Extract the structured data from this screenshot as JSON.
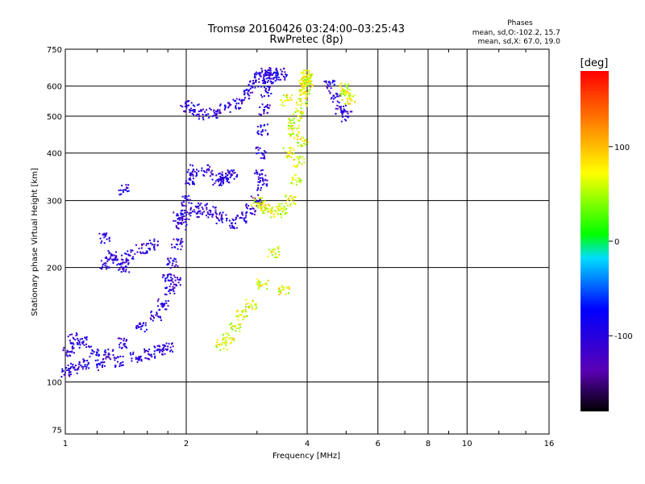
{
  "chart_data": {
    "type": "scatter",
    "title": "Tromsø 20160426 03:24:00–03:25:43",
    "subtitle": "RwPretec (8p)",
    "stats_title": "Phases",
    "stats_line1": "mean, sd,O:-102.2, 15.7",
    "stats_line2": "mean, sd,X:  67.0, 19.0",
    "xlabel": "Frequency [MHz]",
    "ylabel": "Stationary phase Virtual Height [km]",
    "xscale": "log",
    "yscale": "log",
    "xlim": [
      1,
      16
    ],
    "ylim": [
      73,
      750
    ],
    "xticks": [
      1,
      2,
      4,
      6,
      8,
      10,
      16
    ],
    "xtick_labels": [
      "1",
      "2",
      "4",
      "6",
      "8",
      "10",
      "16"
    ],
    "yticks": [
      75,
      100,
      200,
      300,
      400,
      500,
      600,
      750
    ],
    "ytick_labels": [
      "75",
      "100",
      "200",
      "300",
      "400",
      "500",
      "600",
      "750"
    ],
    "grid": true,
    "colorbar": {
      "label": "[deg]",
      "range": [
        -180,
        180
      ],
      "ticks": [
        100,
        0,
        -100
      ],
      "tick_labels": [
        "100",
        "0",
        "-100"
      ]
    },
    "series": [
      {
        "mode": "O",
        "phase_mean": -102.2,
        "traces": [
          {
            "f": [
              1.0,
              1.05,
              1.12,
              1.22,
              1.35,
              1.5,
              1.62,
              1.72,
              1.8
            ],
            "h": [
              106,
              109,
              111,
              111,
              113,
              116,
              118,
              121,
              124
            ]
          },
          {
            "f": [
              1.02,
              1.05,
              1.1,
              1.18,
              1.28,
              1.4,
              1.55,
              1.68,
              1.75,
              1.82,
              1.88
            ],
            "h": [
              120,
              130,
              127,
              120,
              118,
              126,
              140,
              150,
              160,
              175,
              185
            ]
          },
          {
            "f": [
              1.8,
              1.85,
              1.9,
              1.95,
              2.0,
              2.05,
              2.08
            ],
            "h": [
              190,
              205,
              230,
              260,
              300,
              340,
              360
            ]
          },
          {
            "f": [
              1.92,
              2.0,
              2.1,
              2.2,
              2.3,
              2.45,
              2.6,
              2.75,
              2.9,
              3.0,
              3.1
            ],
            "h": [
              270,
              275,
              280,
              285,
              280,
              270,
              262,
              270,
              285,
              300,
              330
            ]
          },
          {
            "f": [
              3.05,
              3.08,
              3.1,
              3.13,
              3.16,
              3.2,
              3.25
            ],
            "h": [
              350,
              400,
              460,
              520,
              580,
              630,
              650
            ]
          },
          {
            "f": [
              1.25,
              1.3,
              1.35,
              1.4,
              1.45,
              1.55,
              1.65
            ],
            "h": [
              205,
              215,
              210,
              200,
              215,
              225,
              230
            ]
          },
          {
            "f": [
              2.0,
              2.1,
              2.2,
              2.35,
              2.5,
              2.7,
              2.85
            ],
            "h": [
              530,
              520,
              505,
              510,
              525,
              540,
              570
            ]
          },
          {
            "f": [
              2.95,
              3.05,
              3.15,
              3.3,
              3.45
            ],
            "h": [
              610,
              640,
              650,
              630,
              645
            ]
          },
          {
            "f": [
              1.25,
              1.4,
              2.25,
              2.45
            ],
            "h": [
              240,
              320,
              360,
              345
            ]
          },
          {
            "f": [
              4.55,
              4.7,
              4.85,
              5.0
            ],
            "h": [
              600,
              560,
              520,
              500
            ]
          },
          {
            "f": [
              2.4,
              2.5,
              2.6
            ],
            "h": [
              340,
              345,
              350
            ]
          }
        ]
      },
      {
        "mode": "X",
        "phase_mean": 67.0,
        "traces": [
          {
            "f": [
              3.0,
              3.1,
              3.2,
              3.35,
              3.5,
              3.65,
              3.75,
              3.82
            ],
            "h": [
              295,
              290,
              285,
              280,
              285,
              300,
              340,
              380
            ]
          },
          {
            "f": [
              3.6,
              3.7,
              3.8,
              3.88,
              3.95,
              4.0
            ],
            "h": [
              400,
              450,
              500,
              540,
              580,
              620
            ]
          },
          {
            "f": [
              3.95,
              3.98,
              4.0,
              4.02
            ],
            "h": [
              600,
              620,
              640,
              630
            ]
          },
          {
            "f": [
              2.45,
              2.55,
              2.65,
              2.75
            ],
            "h": [
              125,
              130,
              140,
              150
            ]
          },
          {
            "f": [
              2.9,
              3.1,
              3.3,
              3.5
            ],
            "h": [
              160,
              180,
              220,
              175
            ]
          },
          {
            "f": [
              3.55,
              3.7,
              3.9
            ],
            "h": [
              550,
              480,
              430
            ]
          },
          {
            "f": [
              4.9,
              5.0,
              5.1
            ],
            "h": [
              590,
              570,
              555
            ]
          }
        ]
      }
    ]
  }
}
